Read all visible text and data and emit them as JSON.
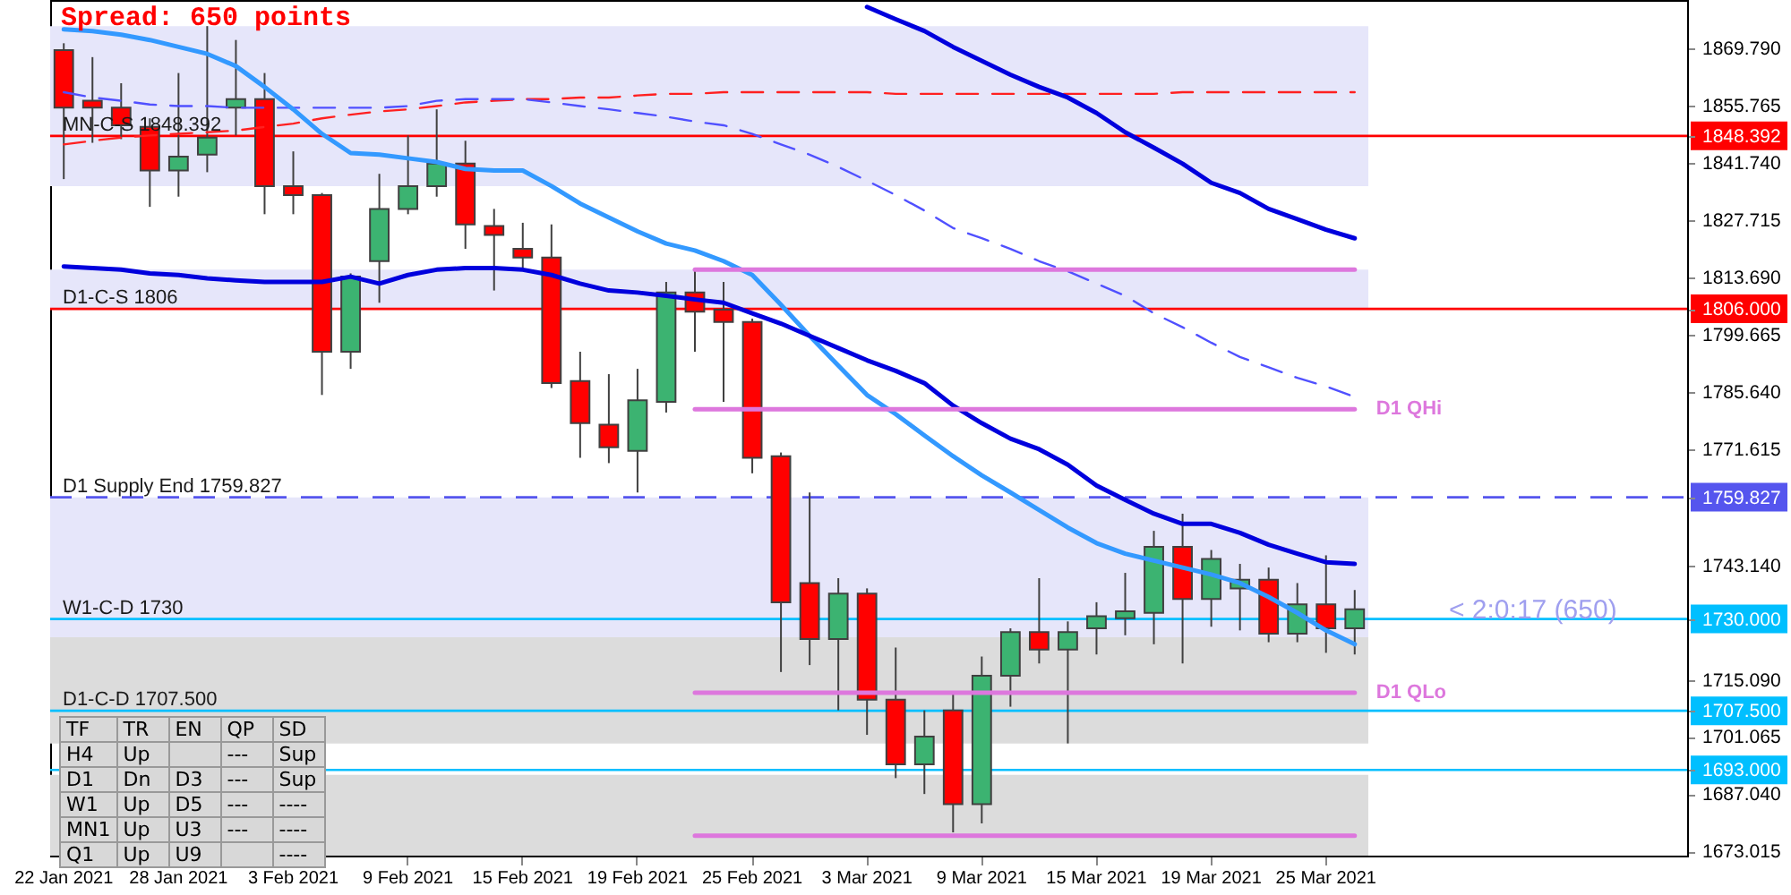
{
  "chart_data": [
    {
      "type": "candlestick",
      "categories": [
        "22 Jan 2021",
        null,
        null,
        null,
        "28 Jan 2021",
        null,
        null,
        null,
        "3 Feb 2021",
        null,
        null,
        null,
        "9 Feb 2021",
        null,
        null,
        null,
        "15 Feb 2021",
        null,
        null,
        null,
        "19 Feb 2021",
        null,
        null,
        null,
        "25 Feb 2021",
        null,
        null,
        null,
        "3 Mar 2021",
        null,
        null,
        null,
        "9 Mar 2021",
        null,
        null,
        null,
        "15 Mar 2021",
        null,
        null,
        null,
        "19 Mar 2021",
        null,
        null,
        null,
        "25 Mar 2021",
        null
      ],
      "ohlc": [
        [
          1869.4,
          1871.1,
          1837.8,
          1855.3
        ],
        [
          1857.0,
          1867.7,
          1846.7,
          1855.3
        ],
        [
          1855.3,
          1861.3,
          1847.6,
          1851.0
        ],
        [
          1850.6,
          1852.7,
          1831.0,
          1839.9
        ],
        [
          1839.9,
          1863.8,
          1833.5,
          1843.3
        ],
        [
          1843.8,
          1875.3,
          1839.5,
          1848.0
        ],
        [
          1855.3,
          1871.9,
          1848.5,
          1857.4
        ],
        [
          1857.4,
          1863.8,
          1829.2,
          1836.1
        ],
        [
          1836.1,
          1844.6,
          1829.2,
          1833.9
        ],
        [
          1833.9,
          1834.4,
          1784.9,
          1795.5
        ],
        [
          1795.5,
          1814.7,
          1791.3,
          1813.9
        ],
        [
          1817.7,
          1839.1,
          1807.5,
          1830.5
        ],
        [
          1830.5,
          1848.5,
          1829.2,
          1836.1
        ],
        [
          1836.1,
          1854.9,
          1833.5,
          1841.6
        ],
        [
          1841.6,
          1847.2,
          1820.7,
          1826.7
        ],
        [
          1826.3,
          1830.5,
          1810.5,
          1824.1
        ],
        [
          1820.7,
          1827.1,
          1815.6,
          1818.6
        ],
        [
          1818.6,
          1826.7,
          1786.6,
          1787.8
        ],
        [
          1788.3,
          1795.5,
          1769.5,
          1778.0
        ],
        [
          1777.6,
          1790.0,
          1768.2,
          1772.1
        ],
        [
          1771.2,
          1791.3,
          1761.0,
          1783.6
        ],
        [
          1783.2,
          1812.6,
          1780.6,
          1810.0
        ],
        [
          1810.0,
          1815.6,
          1795.5,
          1805.3
        ],
        [
          1805.8,
          1812.6,
          1783.2,
          1802.8
        ],
        [
          1802.8,
          1803.6,
          1765.7,
          1769.5
        ],
        [
          1769.9,
          1770.8,
          1717.0,
          1734.1
        ],
        [
          1738.8,
          1761.0,
          1718.7,
          1725.1
        ],
        [
          1725.1,
          1740.0,
          1707.6,
          1736.2
        ],
        [
          1736.2,
          1737.5,
          1701.6,
          1710.2
        ],
        [
          1710.2,
          1723.0,
          1691.0,
          1694.4
        ],
        [
          1694.4,
          1707.6,
          1687.1,
          1701.2
        ],
        [
          1707.6,
          1711.9,
          1677.7,
          1684.6
        ],
        [
          1684.6,
          1720.8,
          1679.9,
          1716.1
        ],
        [
          1716.1,
          1727.7,
          1708.5,
          1726.8
        ],
        [
          1726.8,
          1740.0,
          1719.1,
          1722.5
        ],
        [
          1722.5,
          1729.4,
          1699.5,
          1726.8
        ],
        [
          1727.7,
          1734.1,
          1721.3,
          1730.7
        ],
        [
          1730.2,
          1741.3,
          1726.0,
          1731.9
        ],
        [
          1731.5,
          1751.6,
          1723.8,
          1747.7
        ],
        [
          1747.7,
          1755.8,
          1719.1,
          1734.9
        ],
        [
          1734.9,
          1746.9,
          1728.1,
          1744.7
        ],
        [
          1737.5,
          1743.5,
          1727.2,
          1739.6
        ],
        [
          1739.6,
          1742.6,
          1724.3,
          1726.4
        ],
        [
          1726.4,
          1738.8,
          1724.3,
          1733.6
        ],
        [
          1733.6,
          1745.6,
          1721.7,
          1727.7
        ],
        [
          1727.7,
          1737.1,
          1721.3,
          1732.4
        ]
      ],
      "colors": [
        "#ff0000",
        "#ff0000",
        "#ff0000",
        "#ff0000",
        "#3cb371",
        "#3cb371",
        "#3cb371",
        "#ff0000",
        "#ff0000",
        "#ff0000",
        "#3cb371",
        "#3cb371",
        "#3cb371",
        "#3cb371",
        "#ff0000",
        "#ff0000",
        "#ff0000",
        "#ff0000",
        "#ff0000",
        "#ff0000",
        "#3cb371",
        "#3cb371",
        "#ff0000",
        "#ff0000",
        "#ff0000",
        "#ff0000",
        "#ff0000",
        "#3cb371",
        "#ff0000",
        "#ff0000",
        "#3cb371",
        "#ff0000",
        "#3cb371",
        "#3cb371",
        "#ff0000",
        "#3cb371",
        "#3cb371",
        "#3cb371",
        "#3cb371",
        "#ff0000",
        "#3cb371",
        "#3cb371",
        "#ff0000",
        "#3cb371",
        "#ff0000",
        "#3cb371"
      ],
      "series": [
        {
          "type": "line",
          "color": "#ff2020",
          "line_style": "dashed",
          "values": [
            1846.3,
            1847.2,
            1848.0,
            1848.5,
            1848.9,
            1849.3,
            1849.7,
            1850.6,
            1851.4,
            1852.7,
            1853.6,
            1854.4,
            1854.9,
            1855.7,
            1856.6,
            1857.0,
            1857.4,
            1857.4,
            1857.8,
            1857.8,
            1858.3,
            1858.7,
            1858.7,
            1859.1,
            1859.1,
            1859.1,
            1859.1,
            1859.1,
            1859.1,
            1858.7,
            1858.7,
            1858.7,
            1858.7,
            1858.7,
            1858.7,
            1858.7,
            1858.7,
            1858.7,
            1858.7,
            1859.1,
            1859.1,
            1859.1,
            1859.1,
            1859.1,
            1859.1,
            1859.1
          ]
        },
        {
          "type": "line",
          "color": "#5050ff",
          "line_style": "dashed",
          "values": [
            1859.1,
            1857.8,
            1857.0,
            1856.1,
            1855.7,
            1855.7,
            1855.3,
            1855.3,
            1855.3,
            1855.3,
            1855.3,
            1855.3,
            1855.7,
            1857.0,
            1857.4,
            1857.4,
            1857.4,
            1856.6,
            1855.7,
            1854.9,
            1854.0,
            1853.1,
            1851.9,
            1851.0,
            1848.9,
            1846.3,
            1843.8,
            1840.8,
            1837.4,
            1833.9,
            1830.1,
            1825.8,
            1823.3,
            1820.7,
            1817.7,
            1815.2,
            1812.2,
            1809.2,
            1804.9,
            1801.5,
            1797.7,
            1794.2,
            1791.7,
            1789.1,
            1787.0,
            1784.4
          ]
        },
        {
          "type": "line",
          "color": "#3399ff",
          "line_style": "solid",
          "values": [
            1874.5,
            1874.1,
            1873.2,
            1871.9,
            1870.2,
            1868.5,
            1865.5,
            1860.4,
            1854.9,
            1848.9,
            1844.2,
            1843.8,
            1842.9,
            1842.0,
            1840.3,
            1839.9,
            1839.9,
            1836.1,
            1831.8,
            1828.4,
            1825.0,
            1822.0,
            1820.3,
            1817.7,
            1814.3,
            1807.0,
            1799.4,
            1792.1,
            1784.9,
            1780.2,
            1775.0,
            1769.9,
            1765.2,
            1761.0,
            1756.7,
            1752.4,
            1748.6,
            1746.0,
            1744.3,
            1742.6,
            1740.9,
            1738.8,
            1735.4,
            1731.5,
            1727.2,
            1723.8
          ]
        },
        {
          "type": "line",
          "color": "#0000dd",
          "line_style": "solid",
          "values": [
            1816.4,
            1816.0,
            1815.6,
            1814.7,
            1814.3,
            1813.5,
            1813.0,
            1812.6,
            1812.6,
            1812.6,
            1813.9,
            1812.2,
            1814.3,
            1815.6,
            1816.0,
            1816.0,
            1815.6,
            1814.3,
            1812.2,
            1810.5,
            1810.0,
            1809.2,
            1808.3,
            1807.5,
            1804.9,
            1802.4,
            1799.4,
            1796.4,
            1793.4,
            1790.8,
            1787.8,
            1782.3,
            1778.0,
            1774.2,
            1771.6,
            1767.8,
            1762.7,
            1759.2,
            1755.8,
            1753.3,
            1753.3,
            1751.1,
            1748.2,
            1746.0,
            1743.9,
            1743.5
          ]
        },
        {
          "type": "line",
          "color": "#0000dd",
          "line_style": "solid",
          "values": [
            null,
            null,
            null,
            null,
            null,
            null,
            null,
            null,
            null,
            null,
            null,
            null,
            null,
            null,
            null,
            null,
            null,
            null,
            null,
            null,
            null,
            null,
            null,
            null,
            null,
            null,
            null,
            null,
            1880.0,
            1877.0,
            1874.1,
            1870.2,
            1866.8,
            1863.4,
            1860.4,
            1857.8,
            1854.0,
            1849.3,
            1845.5,
            1841.6,
            1836.9,
            1834.4,
            1830.5,
            1828.0,
            1825.4,
            1823.3
          ]
        },
        {
          "type": "line",
          "color": "#dd77dd",
          "line_style": "solid",
          "values": [
            null,
            null,
            null,
            null,
            null,
            null,
            null,
            null,
            null,
            null,
            null,
            null,
            null,
            null,
            null,
            null,
            null,
            null,
            null,
            null,
            null,
            null,
            1815.6,
            1815.6,
            1815.6,
            1815.6,
            1815.6,
            1815.6,
            1815.6,
            1815.6,
            1815.6,
            1815.6,
            1815.6,
            1815.6,
            1815.6,
            1815.6,
            1815.6,
            1815.6,
            1815.6,
            1815.6,
            1815.6,
            1815.6,
            1815.6,
            1815.6,
            1815.6,
            1815.6
          ]
        },
        {
          "type": "line",
          "name": "D1 QHi",
          "color": "#dd77dd",
          "line_style": "solid",
          "values": [
            null,
            null,
            null,
            null,
            null,
            null,
            null,
            null,
            null,
            null,
            null,
            null,
            null,
            null,
            null,
            null,
            null,
            null,
            null,
            null,
            null,
            null,
            1781.4,
            1781.4,
            1781.4,
            1781.4,
            1781.4,
            1781.4,
            1781.4,
            1781.4,
            1781.4,
            1781.4,
            1781.4,
            1781.4,
            1781.4,
            1781.4,
            1781.4,
            1781.4,
            1781.4,
            1781.4,
            1781.4,
            1781.4,
            1781.4,
            1781.4,
            1781.4,
            1781.4
          ]
        },
        {
          "type": "line",
          "name": "D1 QLo",
          "color": "#dd77dd",
          "line_style": "solid",
          "values": [
            null,
            null,
            null,
            null,
            null,
            null,
            null,
            null,
            null,
            null,
            null,
            null,
            null,
            null,
            null,
            null,
            null,
            null,
            null,
            null,
            null,
            null,
            1711.9,
            1711.9,
            1711.9,
            1711.9,
            1711.9,
            1711.9,
            1711.9,
            1711.9,
            1711.9,
            1711.9,
            1711.9,
            1711.9,
            1711.9,
            1711.9,
            1711.9,
            1711.9,
            1711.9,
            1711.9,
            1711.9,
            1711.9,
            1711.9,
            1711.9,
            1711.9,
            1711.9
          ]
        },
        {
          "type": "line",
          "color": "#dd77dd",
          "line_style": "solid",
          "values": [
            null,
            null,
            null,
            null,
            null,
            null,
            null,
            null,
            null,
            null,
            null,
            null,
            null,
            null,
            null,
            null,
            null,
            null,
            null,
            null,
            null,
            null,
            1676.9,
            1676.9,
            1676.9,
            1676.9,
            1676.9,
            1676.9,
            1676.9,
            1676.9,
            1676.9,
            1676.9,
            1676.9,
            1676.9,
            1676.9,
            1676.9,
            1676.9,
            1676.9,
            1676.9,
            1676.9,
            1676.9,
            1676.9,
            1676.9,
            1676.9,
            1676.9,
            1676.9
          ]
        }
      ],
      "bands": [
        {
          "axis": "y",
          "from": 1836.1,
          "to": 1875.3,
          "color": "#e6e6fa"
        },
        {
          "axis": "y",
          "from": 1806,
          "to": 1815.6,
          "color": "#e6e6fa"
        },
        {
          "axis": "y",
          "from": 1725.5,
          "to": 1759.8,
          "color": "#e6e6fa"
        },
        {
          "axis": "y",
          "from": 1699.5,
          "to": 1725.5,
          "color": "#dcdcdc"
        },
        {
          "axis": "y",
          "from": 1672,
          "to": 1691.8,
          "color": "#dcdcdc"
        }
      ],
      "ref_lines": [
        {
          "axis": "y",
          "value": 1848.392,
          "label": "MN-C-S 1848.392",
          "color": "#ff0000"
        },
        {
          "axis": "y",
          "value": 1806,
          "label": "D1-C-S 1806",
          "color": "#ff0000"
        },
        {
          "axis": "y",
          "value": 1759.827,
          "label": "D1 Supply End 1759.827",
          "color": "#5555ee",
          "line_style": "dashed"
        },
        {
          "axis": "y",
          "value": 1730,
          "label": "W1-C-D 1730",
          "color": "#00bfff"
        },
        {
          "axis": "y",
          "value": 1707.5,
          "label": "D1-C-D 1707.500",
          "color": "#00bfff"
        },
        {
          "axis": "y",
          "value": 1693,
          "label": null,
          "color": "#00bfff"
        }
      ],
      "ylim": [
        1672,
        1881.7
      ],
      "yticks": [
        {
          "value": 1869.79,
          "label": "1869.790"
        },
        {
          "value": 1855.765,
          "label": "1855.765"
        },
        {
          "value": 1841.74,
          "label": "1841.740"
        },
        {
          "value": 1827.715,
          "label": "1827.715"
        },
        {
          "value": 1813.69,
          "label": "1813.690"
        },
        {
          "value": 1799.665,
          "label": "1799.665"
        },
        {
          "value": 1785.64,
          "label": "1785.640"
        },
        {
          "value": 1771.615,
          "label": "1771.615"
        },
        {
          "value": 1743.14,
          "label": "1743.140"
        },
        {
          "value": 1715.09,
          "label": "1715.090"
        },
        {
          "value": 1701.065,
          "label": "1701.065"
        },
        {
          "value": 1687.04,
          "label": "1687.040"
        },
        {
          "value": 1673.015,
          "label": "1673.015"
        },
        {
          "value": 1848.392,
          "label": "1848.392"
        },
        {
          "value": 1806,
          "label": "1806.000"
        },
        {
          "value": 1759.827,
          "label": "1759.827"
        },
        {
          "value": 1730,
          "label": "1730.000"
        },
        {
          "value": 1707.5,
          "label": "1707.500"
        },
        {
          "value": 1693,
          "label": "1693.000"
        }
      ],
      "annotations": [
        "Spread: 650 points",
        "< 2:0:17 (650)"
      ]
    },
    {
      "type": "other",
      "categories": [
        "TF",
        "TR",
        "EN",
        "QP",
        "SD"
      ],
      "cell_labels": [
        [
          "H4",
          "Up",
          null,
          "---",
          "Sup"
        ],
        [
          "D1",
          "Dn",
          "D3",
          "---",
          "Sup"
        ],
        [
          "W1",
          "Up",
          "D5",
          "---",
          "----"
        ],
        [
          "MN1",
          "Up",
          "U3",
          "---",
          "----"
        ],
        [
          "Q1",
          "Up",
          "U9",
          null,
          "----"
        ]
      ]
    }
  ]
}
